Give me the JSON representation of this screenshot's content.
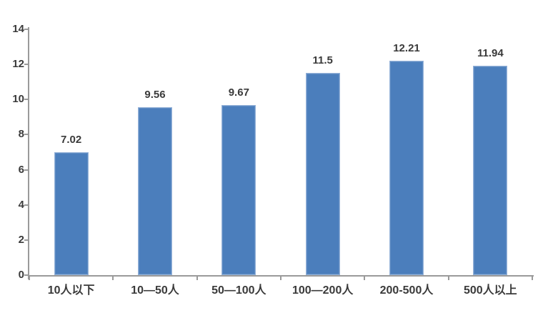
{
  "chart_data": {
    "type": "bar",
    "title": "",
    "xlabel": "",
    "ylabel": "",
    "categories": [
      "10人以下",
      "10—50人",
      "50—100人",
      "100—200人",
      "200-500人",
      "500人以上"
    ],
    "values": [
      7.02,
      9.56,
      9.67,
      11.5,
      12.21,
      11.94
    ],
    "data_labels": [
      "7.02",
      "9.56",
      "9.67",
      "11.5",
      "12.21",
      "11.94"
    ],
    "ylim": [
      0,
      14
    ],
    "yticks": [
      0,
      2,
      4,
      6,
      8,
      10,
      12,
      14
    ],
    "grid": false,
    "legend_position": "none",
    "bar_color": "#4b7ebc",
    "bar_edge_color": "#96b3d9",
    "axis_color": "#9a9a9a",
    "text_color": "#3a3a3a"
  }
}
